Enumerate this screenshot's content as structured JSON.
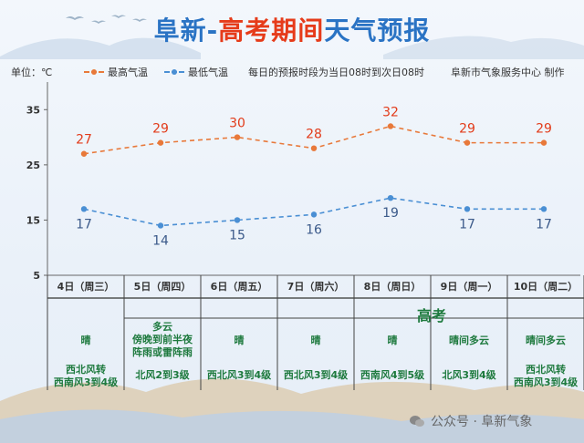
{
  "title": {
    "part_a": "阜新-",
    "part_b": "高考期间",
    "part_c": "天气预报"
  },
  "header": {
    "unit": "单位：℃",
    "legend_high": "最高气温",
    "legend_low": "最低气温",
    "note": "每日的预报时段为当日08时到次日08时",
    "credit": "阜新市气象服务中心 制作"
  },
  "colors": {
    "high": "#e8793a",
    "low": "#4a8fd4",
    "high_label": "#e23b1a",
    "low_label": "#3b5a8a",
    "green": "#1e7a3e"
  },
  "chart_data": {
    "type": "line",
    "categories": [
      "4日（周三）",
      "5日（周四）",
      "6日（周五）",
      "7日（周六）",
      "8日（周日）",
      "9日（周一）",
      "10日（周二）"
    ],
    "series": [
      {
        "name": "最高气温",
        "values": [
          27,
          29,
          30,
          28,
          32,
          29,
          29
        ]
      },
      {
        "name": "最低气温",
        "values": [
          17,
          14,
          15,
          16,
          19,
          17,
          17
        ]
      }
    ],
    "yticks": [
      "5",
      "15",
      "25",
      "35"
    ],
    "ylim": [
      5,
      40
    ]
  },
  "weather_row": [
    "晴",
    "多云\n傍晚到前半夜\n阵雨或雷阵雨",
    "晴",
    "晴",
    "晴",
    "晴间多云",
    "晴间多云"
  ],
  "wind_row": [
    "西北风转\n西南风3到4级",
    "北风2到3级",
    "西北风3到4级",
    "西北风3到4级",
    "西南风4到5级",
    "北风3到4级",
    "西北风转\n西南风3到4级"
  ],
  "gaokao_label": "高考",
  "watermark": "公众号 · 阜新气象"
}
